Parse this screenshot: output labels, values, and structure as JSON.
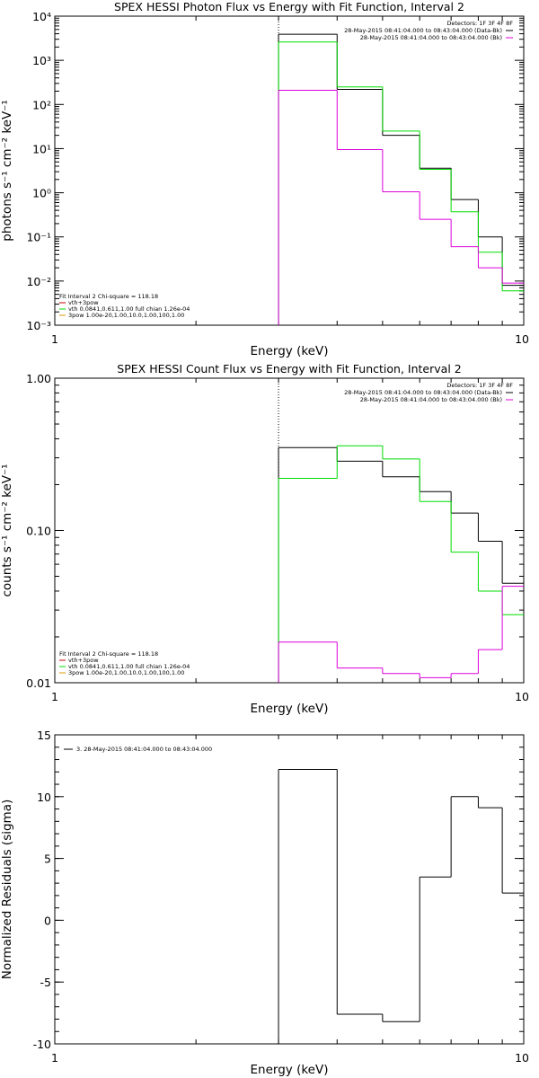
{
  "colors": {
    "black": "#000000",
    "green": "#00dd00",
    "magenta": "#dd00dd",
    "red": "#cc0000",
    "orange": "#dd9900",
    "background": "#ffffff"
  },
  "chart_data": [
    {
      "id": "photon",
      "type": "line",
      "title": "SPEX HESSI Photon Flux vs Energy with Fit Function, Interval 2",
      "xlabel": "Energy (keV)",
      "ylabel": "photons s⁻¹ cm⁻² keV⁻¹",
      "xscale": "log",
      "yscale": "log",
      "xlim": [
        1,
        10
      ],
      "ylim": [
        0.001,
        10000
      ],
      "xticks": [
        {
          "value": 1,
          "label": "1"
        },
        {
          "value": 10,
          "label": "10"
        }
      ],
      "yticks": [
        {
          "value": 0.001,
          "label": "10⁻³"
        },
        {
          "value": 0.01,
          "label": "10⁻²"
        },
        {
          "value": 0.1,
          "label": "10⁻¹"
        },
        {
          "value": 1,
          "label": "10⁰"
        },
        {
          "value": 10,
          "label": "10¹"
        },
        {
          "value": 100,
          "label": "10²"
        },
        {
          "value": 1000,
          "label": "10³"
        },
        {
          "value": 10000,
          "label": "10⁴"
        }
      ],
      "vline_x": 3,
      "bin_edges": [
        3,
        4,
        5,
        6,
        7,
        8,
        9,
        10
      ],
      "series": [
        {
          "color": "#000000",
          "values": [
            3900,
            220,
            20,
            3.6,
            0.7,
            0.1,
            0.008
          ]
        },
        {
          "color": "#00dd00",
          "values": [
            2600,
            250,
            25,
            3.4,
            0.37,
            0.045,
            0.006
          ]
        },
        {
          "color": "#dd00dd",
          "values": [
            210,
            9.5,
            1.05,
            0.25,
            0.06,
            0.02,
            0.009
          ]
        }
      ],
      "legend_top": {
        "header": "Detectors: 1F 3F 4F 8F",
        "lines": [
          {
            "text": "28-May-2015 08:41:04.000 to 08:43:04.000 (Data-Bk)",
            "color": "#000000"
          },
          {
            "text": "28-May-2015 08:41:04.000 to 08:43:04.000 (Bk)",
            "color": "#dd00dd"
          }
        ]
      },
      "legend_bottom": {
        "header": "Fit Interval 2   Chi-square = 118.18",
        "lines": [
          {
            "text": "vth+3pow",
            "color": "#cc0000"
          },
          {
            "text": "vth 0.0841,0.611,1.00  full chian 1.26e-04",
            "color": "#00dd00"
          },
          {
            "text": "3pow 1.00e-20,1.00,10.0,1.00,100,1.00",
            "color": "#dd9900"
          }
        ]
      }
    },
    {
      "id": "count",
      "type": "line",
      "title": "SPEX HESSI Count Flux vs Energy with Fit Function, Interval 2",
      "xlabel": "Energy (keV)",
      "ylabel": "counts s⁻¹ cm⁻² keV⁻¹",
      "xscale": "log",
      "yscale": "log",
      "xlim": [
        1,
        10
      ],
      "ylim": [
        0.01,
        1.0
      ],
      "xticks": [
        {
          "value": 1,
          "label": "1"
        },
        {
          "value": 10,
          "label": "10"
        }
      ],
      "yticks": [
        {
          "value": 0.01,
          "label": "0.01"
        },
        {
          "value": 0.1,
          "label": "0.10"
        },
        {
          "value": 1.0,
          "label": "1.00"
        }
      ],
      "vline_x": 3,
      "bin_edges": [
        3,
        4,
        5,
        6,
        7,
        8,
        9,
        10
      ],
      "series": [
        {
          "color": "#000000",
          "values": [
            0.35,
            0.285,
            0.225,
            0.18,
            0.13,
            0.085,
            0.045
          ]
        },
        {
          "color": "#00dd00",
          "values": [
            0.22,
            0.36,
            0.295,
            0.155,
            0.072,
            0.04,
            0.028
          ]
        },
        {
          "color": "#dd00dd",
          "values": [
            0.0185,
            0.0125,
            0.0115,
            0.0108,
            0.0115,
            0.0165,
            0.043
          ]
        }
      ],
      "legend_top": {
        "header": "Detectors: 1F 3F 4F 8F",
        "lines": [
          {
            "text": "28-May-2015 08:41:04.000 to 08:43:04.000 (Data-Bk)",
            "color": "#000000"
          },
          {
            "text": "28-May-2015 08:41:04.000 to 08:43:04.000 (Bk)",
            "color": "#dd00dd"
          }
        ]
      },
      "legend_bottom": {
        "header": "Fit Interval 2   Chi-square = 118.18",
        "lines": [
          {
            "text": "vth+3pow",
            "color": "#cc0000"
          },
          {
            "text": "vth 0.0841,0.611,1.00  full chian 1.26e-04",
            "color": "#00dd00"
          },
          {
            "text": "3pow 1.00e-20,1.00,10.0,1.00,100,1.00",
            "color": "#dd9900"
          }
        ]
      }
    },
    {
      "id": "resid",
      "type": "line",
      "title": "",
      "xlabel": "Energy (keV)",
      "ylabel": "Normalized Residuals (sigma)",
      "xscale": "log",
      "yscale": "linear",
      "xlim": [
        1,
        10
      ],
      "ylim": [
        -10,
        15
      ],
      "xticks": [
        {
          "value": 1,
          "label": "1"
        },
        {
          "value": 10,
          "label": "10"
        }
      ],
      "yticks": [
        {
          "value": -10,
          "label": "-10"
        },
        {
          "value": -5,
          "label": "-5"
        },
        {
          "value": 0,
          "label": "0"
        },
        {
          "value": 5,
          "label": "5"
        },
        {
          "value": 10,
          "label": "10"
        },
        {
          "value": 15,
          "label": "15"
        }
      ],
      "bin_edges": [
        3,
        4,
        5,
        6,
        7,
        8,
        9,
        10
      ],
      "series": [
        {
          "color": "#000000",
          "values": [
            12.2,
            -7.6,
            -8.2,
            3.5,
            10.0,
            9.1,
            2.2
          ]
        }
      ],
      "legend_top_left": {
        "lines": [
          {
            "text": "3. 28-May-2015 08:41:04.000 to 08:43:04.000",
            "color": "#000000"
          }
        ]
      }
    }
  ]
}
